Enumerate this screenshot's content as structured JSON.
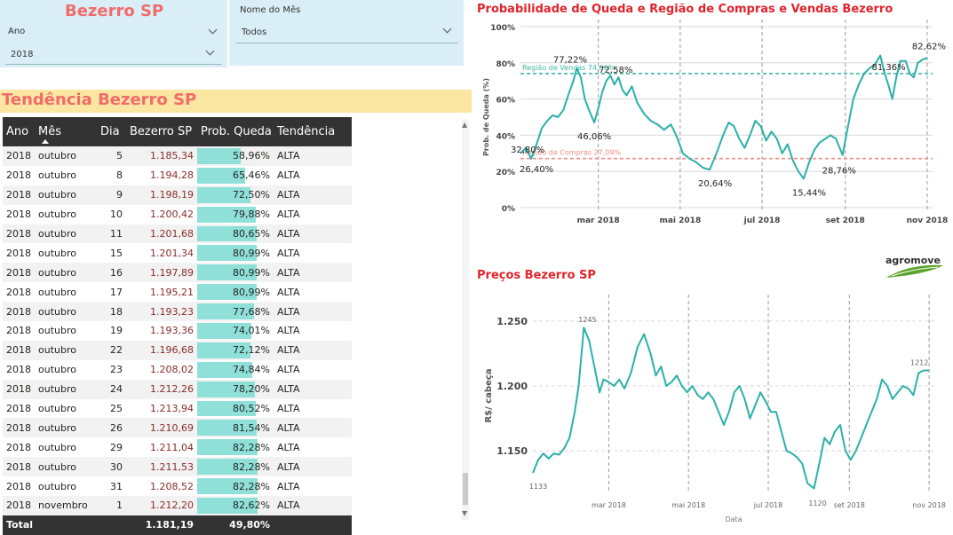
{
  "header": {
    "title": "Bezerro SP",
    "ano_label": "Ano",
    "ano_value": "2018",
    "mes_label": "Nome do Mês",
    "mes_value": "Todos"
  },
  "table": {
    "title": "Tendência Bezerro SP",
    "columns": [
      "Ano",
      "Mês",
      "Dia",
      "Bezerro SP",
      "Prob. Queda",
      "Tendência"
    ],
    "rows": [
      {
        "ano": "2018",
        "mes": "outubro",
        "dia": "5",
        "preco": "1.185,34",
        "prob": "58,96%",
        "prob_value": 58.96,
        "tend": "ALTA"
      },
      {
        "ano": "2018",
        "mes": "outubro",
        "dia": "8",
        "preco": "1.194,28",
        "prob": "65,46%",
        "prob_value": 65.46,
        "tend": "ALTA"
      },
      {
        "ano": "2018",
        "mes": "outubro",
        "dia": "9",
        "preco": "1.198,19",
        "prob": "72,50%",
        "prob_value": 72.5,
        "tend": "ALTA"
      },
      {
        "ano": "2018",
        "mes": "outubro",
        "dia": "10",
        "preco": "1.200,42",
        "prob": "79,88%",
        "prob_value": 79.88,
        "tend": "ALTA"
      },
      {
        "ano": "2018",
        "mes": "outubro",
        "dia": "11",
        "preco": "1.201,68",
        "prob": "80,65%",
        "prob_value": 80.65,
        "tend": "ALTA"
      },
      {
        "ano": "2018",
        "mes": "outubro",
        "dia": "15",
        "preco": "1.201,34",
        "prob": "80,99%",
        "prob_value": 80.99,
        "tend": "ALTA"
      },
      {
        "ano": "2018",
        "mes": "outubro",
        "dia": "16",
        "preco": "1.197,89",
        "prob": "80,99%",
        "prob_value": 80.99,
        "tend": "ALTA"
      },
      {
        "ano": "2018",
        "mes": "outubro",
        "dia": "17",
        "preco": "1.195,21",
        "prob": "80,99%",
        "prob_value": 80.99,
        "tend": "ALTA"
      },
      {
        "ano": "2018",
        "mes": "outubro",
        "dia": "18",
        "preco": "1.193,23",
        "prob": "77,68%",
        "prob_value": 77.68,
        "tend": "ALTA"
      },
      {
        "ano": "2018",
        "mes": "outubro",
        "dia": "19",
        "preco": "1.193,36",
        "prob": "74,01%",
        "prob_value": 74.01,
        "tend": "ALTA"
      },
      {
        "ano": "2018",
        "mes": "outubro",
        "dia": "22",
        "preco": "1.196,68",
        "prob": "72,12%",
        "prob_value": 72.12,
        "tend": "ALTA"
      },
      {
        "ano": "2018",
        "mes": "outubro",
        "dia": "23",
        "preco": "1.208,02",
        "prob": "74,84%",
        "prob_value": 74.84,
        "tend": "ALTA"
      },
      {
        "ano": "2018",
        "mes": "outubro",
        "dia": "24",
        "preco": "1.212,26",
        "prob": "78,20%",
        "prob_value": 78.2,
        "tend": "ALTA"
      },
      {
        "ano": "2018",
        "mes": "outubro",
        "dia": "25",
        "preco": "1.213,94",
        "prob": "80,52%",
        "prob_value": 80.52,
        "tend": "ALTA"
      },
      {
        "ano": "2018",
        "mes": "outubro",
        "dia": "26",
        "preco": "1.210,69",
        "prob": "81,54%",
        "prob_value": 81.54,
        "tend": "ALTA"
      },
      {
        "ano": "2018",
        "mes": "outubro",
        "dia": "29",
        "preco": "1.211,04",
        "prob": "82,28%",
        "prob_value": 82.28,
        "tend": "ALTA"
      },
      {
        "ano": "2018",
        "mes": "outubro",
        "dia": "30",
        "preco": "1.211,53",
        "prob": "82,28%",
        "prob_value": 82.28,
        "tend": "ALTA"
      },
      {
        "ano": "2018",
        "mes": "outubro",
        "dia": "31",
        "preco": "1.208,52",
        "prob": "82,28%",
        "prob_value": 82.28,
        "tend": "ALTA"
      },
      {
        "ano": "2018",
        "mes": "novembro",
        "dia": "1",
        "preco": "1.212,20",
        "prob": "82,62%",
        "prob_value": 82.62,
        "tend": "ALTA"
      }
    ],
    "total": {
      "label": "Total",
      "preco": "1.181,19",
      "prob": "49,80%"
    }
  },
  "chart_data": [
    {
      "type": "line",
      "title": "Probabilidade de Queda e Região de Compras e Vendas Bezerro",
      "xlabel": "",
      "ylabel": "Prob. de Queda (%)",
      "ylim": [
        0,
        100
      ],
      "y_ticks": [
        "0%",
        "20%",
        "40%",
        "60%",
        "80%",
        "100%"
      ],
      "x_ticks": [
        "mar 2018",
        "mai 2018",
        "jul 2018",
        "set 2018",
        "nov 2018"
      ],
      "x_tick_dates": [
        "2018-03-01",
        "2018-05-01",
        "2018-07-01",
        "2018-09-01",
        "2018-11-01"
      ],
      "xlim": [
        "2018-01-02",
        "2018-11-05"
      ],
      "grid": true,
      "reference_lines": [
        {
          "label": "Região de Vendas 74,06%",
          "value": 74.06,
          "color": "#3fb8a3"
        },
        {
          "label": "Região de Compras 27,09%",
          "value": 27.09,
          "color": "#f08a84"
        }
      ],
      "data_labels": [
        {
          "date": "2018-01-06",
          "value": 32.8,
          "text": "32,80%"
        },
        {
          "date": "2018-01-10",
          "value": 26.4,
          "text": "26,40%"
        },
        {
          "date": "2018-02-12",
          "value": 77.22,
          "text": "77,22%"
        },
        {
          "date": "2018-02-26",
          "value": 46.06,
          "text": "46,06%"
        },
        {
          "date": "2018-03-10",
          "value": 72.58,
          "text": "72,58%"
        },
        {
          "date": "2018-05-23",
          "value": 20.64,
          "text": "20,64%"
        },
        {
          "date": "2018-08-01",
          "value": 15.44,
          "text": "15,44%"
        },
        {
          "date": "2018-08-30",
          "value": 28.76,
          "text": "28,76%"
        },
        {
          "date": "2018-09-28",
          "value": 81.36,
          "text": "81,36%"
        },
        {
          "date": "2018-11-01",
          "value": 82.62,
          "text": "82,62%"
        }
      ],
      "series": [
        {
          "color": "#2bb0a8",
          "points": [
            [
              "2018-01-02",
              30
            ],
            [
              "2018-01-06",
              33
            ],
            [
              "2018-01-10",
              27
            ],
            [
              "2018-01-14",
              35
            ],
            [
              "2018-01-18",
              44
            ],
            [
              "2018-01-22",
              48
            ],
            [
              "2018-01-26",
              51
            ],
            [
              "2018-01-30",
              50
            ],
            [
              "2018-02-03",
              54
            ],
            [
              "2018-02-07",
              63
            ],
            [
              "2018-02-10",
              69
            ],
            [
              "2018-02-13",
              77
            ],
            [
              "2018-02-16",
              72
            ],
            [
              "2018-02-19",
              60
            ],
            [
              "2018-02-22",
              54
            ],
            [
              "2018-02-26",
              47
            ],
            [
              "2018-03-01",
              55
            ],
            [
              "2018-03-04",
              64
            ],
            [
              "2018-03-07",
              70
            ],
            [
              "2018-03-10",
              73
            ],
            [
              "2018-03-13",
              68
            ],
            [
              "2018-03-16",
              72
            ],
            [
              "2018-03-19",
              65
            ],
            [
              "2018-03-22",
              62
            ],
            [
              "2018-03-26",
              67
            ],
            [
              "2018-03-30",
              58
            ],
            [
              "2018-04-04",
              52
            ],
            [
              "2018-04-09",
              48
            ],
            [
              "2018-04-14",
              46
            ],
            [
              "2018-04-19",
              43
            ],
            [
              "2018-04-24",
              46
            ],
            [
              "2018-04-28",
              40
            ],
            [
              "2018-05-03",
              30
            ],
            [
              "2018-05-08",
              27
            ],
            [
              "2018-05-13",
              25
            ],
            [
              "2018-05-18",
              22
            ],
            [
              "2018-05-23",
              21
            ],
            [
              "2018-05-28",
              30
            ],
            [
              "2018-06-02",
              40
            ],
            [
              "2018-06-06",
              47
            ],
            [
              "2018-06-10",
              45
            ],
            [
              "2018-06-14",
              38
            ],
            [
              "2018-06-18",
              33
            ],
            [
              "2018-06-22",
              40
            ],
            [
              "2018-06-26",
              48
            ],
            [
              "2018-06-30",
              45
            ],
            [
              "2018-07-04",
              37
            ],
            [
              "2018-07-08",
              42
            ],
            [
              "2018-07-12",
              38
            ],
            [
              "2018-07-16",
              30
            ],
            [
              "2018-07-20",
              35
            ],
            [
              "2018-07-24",
              26
            ],
            [
              "2018-07-28",
              20
            ],
            [
              "2018-08-01",
              16
            ],
            [
              "2018-08-05",
              25
            ],
            [
              "2018-08-09",
              32
            ],
            [
              "2018-08-13",
              36
            ],
            [
              "2018-08-17",
              38
            ],
            [
              "2018-08-21",
              40
            ],
            [
              "2018-08-25",
              38
            ],
            [
              "2018-08-30",
              29
            ],
            [
              "2018-09-03",
              45
            ],
            [
              "2018-09-07",
              60
            ],
            [
              "2018-09-11",
              68
            ],
            [
              "2018-09-15",
              74
            ],
            [
              "2018-09-19",
              77
            ],
            [
              "2018-09-23",
              79
            ],
            [
              "2018-09-27",
              84
            ],
            [
              "2018-09-30",
              75
            ],
            [
              "2018-10-03",
              68
            ],
            [
              "2018-10-06",
              60
            ],
            [
              "2018-10-09",
              72
            ],
            [
              "2018-10-12",
              81
            ],
            [
              "2018-10-16",
              81
            ],
            [
              "2018-10-19",
              74
            ],
            [
              "2018-10-22",
              72
            ],
            [
              "2018-10-25",
              80
            ],
            [
              "2018-10-29",
              82
            ],
            [
              "2018-11-01",
              82.62
            ]
          ]
        }
      ]
    },
    {
      "type": "line",
      "title": "Preços Bezerro SP",
      "xlabel": "Data",
      "ylabel": "R$/ cabeça",
      "ylim": [
        1120,
        1265
      ],
      "y_ticks": [
        "1.150",
        "1.200",
        "1.250"
      ],
      "y_tick_values": [
        1150,
        1200,
        1250
      ],
      "x_ticks": [
        "mar 2018",
        "mai 2018",
        "jul 2018",
        "set 2018",
        "nov 2018"
      ],
      "x_tick_dates": [
        "2018-03-01",
        "2018-05-01",
        "2018-07-01",
        "2018-09-01",
        "2018-11-01"
      ],
      "xlim": [
        "2018-01-02",
        "2018-11-05"
      ],
      "grid": true,
      "data_labels": [
        {
          "date": "2018-01-02",
          "value": 1133,
          "text": "1133"
        },
        {
          "date": "2018-02-10",
          "value": 1245,
          "text": "1245"
        },
        {
          "date": "2018-08-05",
          "value": 1120,
          "text": "1120"
        },
        {
          "date": "2018-10-30",
          "value": 1212,
          "text": "1212"
        }
      ],
      "series": [
        {
          "color": "#2bb0a8",
          "points": [
            [
              "2018-01-02",
              1133
            ],
            [
              "2018-01-06",
              1143
            ],
            [
              "2018-01-10",
              1148
            ],
            [
              "2018-01-14",
              1144
            ],
            [
              "2018-01-18",
              1148
            ],
            [
              "2018-01-22",
              1147
            ],
            [
              "2018-01-26",
              1152
            ],
            [
              "2018-01-30",
              1160
            ],
            [
              "2018-02-03",
              1180
            ],
            [
              "2018-02-06",
              1200
            ],
            [
              "2018-02-10",
              1245
            ],
            [
              "2018-02-14",
              1235
            ],
            [
              "2018-02-18",
              1215
            ],
            [
              "2018-02-22",
              1195
            ],
            [
              "2018-02-25",
              1205
            ],
            [
              "2018-03-01",
              1203
            ],
            [
              "2018-03-05",
              1200
            ],
            [
              "2018-03-09",
              1205
            ],
            [
              "2018-03-13",
              1198
            ],
            [
              "2018-03-18",
              1210
            ],
            [
              "2018-03-23",
              1230
            ],
            [
              "2018-03-28",
              1240
            ],
            [
              "2018-04-02",
              1225
            ],
            [
              "2018-04-06",
              1208
            ],
            [
              "2018-04-10",
              1215
            ],
            [
              "2018-04-14",
              1200
            ],
            [
              "2018-04-18",
              1203
            ],
            [
              "2018-04-22",
              1208
            ],
            [
              "2018-04-26",
              1200
            ],
            [
              "2018-04-30",
              1195
            ],
            [
              "2018-05-04",
              1200
            ],
            [
              "2018-05-08",
              1193
            ],
            [
              "2018-05-12",
              1190
            ],
            [
              "2018-05-16",
              1195
            ],
            [
              "2018-05-20",
              1190
            ],
            [
              "2018-05-24",
              1180
            ],
            [
              "2018-05-28",
              1170
            ],
            [
              "2018-06-01",
              1180
            ],
            [
              "2018-06-05",
              1195
            ],
            [
              "2018-06-09",
              1200
            ],
            [
              "2018-06-13",
              1190
            ],
            [
              "2018-06-17",
              1175
            ],
            [
              "2018-06-21",
              1185
            ],
            [
              "2018-06-25",
              1195
            ],
            [
              "2018-06-29",
              1188
            ],
            [
              "2018-07-03",
              1180
            ],
            [
              "2018-07-07",
              1180
            ],
            [
              "2018-07-11",
              1165
            ],
            [
              "2018-07-15",
              1150
            ],
            [
              "2018-07-19",
              1148
            ],
            [
              "2018-07-23",
              1145
            ],
            [
              "2018-07-27",
              1140
            ],
            [
              "2018-07-31",
              1125
            ],
            [
              "2018-08-05",
              1121
            ],
            [
              "2018-08-09",
              1140
            ],
            [
              "2018-08-13",
              1160
            ],
            [
              "2018-08-17",
              1155
            ],
            [
              "2018-08-21",
              1165
            ],
            [
              "2018-08-25",
              1170
            ],
            [
              "2018-08-29",
              1150
            ],
            [
              "2018-09-02",
              1143
            ],
            [
              "2018-09-06",
              1150
            ],
            [
              "2018-09-10",
              1160
            ],
            [
              "2018-09-14",
              1170
            ],
            [
              "2018-09-18",
              1180
            ],
            [
              "2018-09-22",
              1190
            ],
            [
              "2018-09-26",
              1205
            ],
            [
              "2018-09-30",
              1200
            ],
            [
              "2018-10-04",
              1190
            ],
            [
              "2018-10-08",
              1195
            ],
            [
              "2018-10-12",
              1200
            ],
            [
              "2018-10-16",
              1198
            ],
            [
              "2018-10-20",
              1193
            ],
            [
              "2018-10-24",
              1210
            ],
            [
              "2018-10-28",
              1212
            ],
            [
              "2018-11-01",
              1212
            ]
          ]
        }
      ]
    }
  ],
  "logo_text": "agromove",
  "colors": {
    "title_red": "#f26b6b",
    "chart_title_red": "#e0242b",
    "line": "#2bb0a8",
    "bar": "#8ee0d9",
    "panel": "#d9eef6",
    "header_dark": "#333333"
  }
}
